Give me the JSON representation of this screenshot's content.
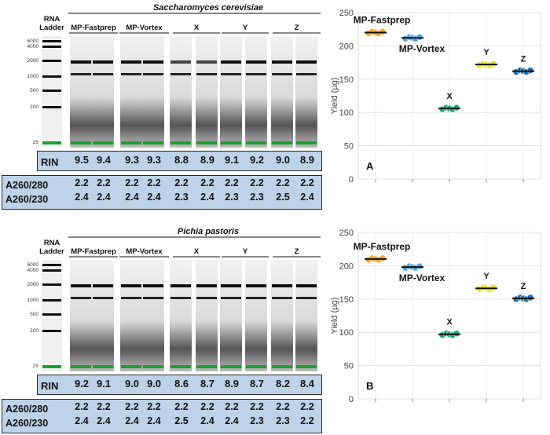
{
  "lane_labels": {
    "ladder_line1": "RNA",
    "ladder_line2": "Ladder",
    "groups": [
      "MP-Fastprep",
      "MP-Vortex",
      "X",
      "Y",
      "Z"
    ],
    "ladder_sizes": [
      "6000",
      "4000",
      "2000",
      "1000",
      "500",
      "200",
      "25"
    ]
  },
  "panels": [
    {
      "species": "Saccharomyces cerevisiae",
      "rin_label": "RIN",
      "rin": [
        "9.5",
        "9.4",
        "9.3",
        "9.3",
        "8.8",
        "8.9",
        "9.1",
        "9.2",
        "9.0",
        "8.9"
      ],
      "a280_label": "A260/280",
      "a280": [
        "2.2",
        "2.2",
        "2.2",
        "2.2",
        "2.2",
        "2.2",
        "2.2",
        "2.2",
        "2.2",
        "2.2"
      ],
      "a230_label": "A260/230",
      "a230": [
        "2.4",
        "2.4",
        "2.4",
        "2.4",
        "2.3",
        "2.4",
        "2.3",
        "2.3",
        "2.5",
        "2.4"
      ],
      "chart_letter": "A"
    },
    {
      "species": "Pichia pastoris",
      "rin_label": "RIN",
      "rin": [
        "9.2",
        "9.1",
        "9.0",
        "9.0",
        "8.6",
        "8.7",
        "8.9",
        "8.7",
        "8.2",
        "8.4"
      ],
      "a280_label": "A260/280",
      "a280": [
        "2.2",
        "2.2",
        "2.2",
        "2.2",
        "2.2",
        "2.2",
        "2.2",
        "2.2",
        "2.2",
        "2.2"
      ],
      "a230_label": "A260/230",
      "a230": [
        "2.4",
        "2.4",
        "2.4",
        "2.4",
        "2.5",
        "2.4",
        "2.4",
        "2.3",
        "2.3",
        "2.2"
      ],
      "chart_letter": "B"
    }
  ],
  "chart_data": [
    {
      "type": "scatter",
      "title": "",
      "xlabel": "",
      "ylabel": "Yield (µg)",
      "ylim": [
        0,
        250
      ],
      "yticks": [
        0,
        50,
        100,
        150,
        200,
        250
      ],
      "grid": true,
      "categories": [
        "MP-Fastprep",
        "MP-Vortex",
        "X",
        "Y",
        "Z"
      ],
      "values": [
        220,
        212,
        106,
        172,
        162
      ],
      "colors": [
        "#f2a526",
        "#4da3e0",
        "#1fa678",
        "#efe022",
        "#1b6fb0"
      ],
      "point_labels": [
        "MP-Fastprep",
        "MP-Vortex",
        "X",
        "Y",
        "Z"
      ]
    },
    {
      "type": "scatter",
      "title": "",
      "xlabel": "",
      "ylabel": "Yield (µg)",
      "ylim": [
        0,
        250
      ],
      "yticks": [
        0,
        50,
        100,
        150,
        200,
        250
      ],
      "grid": true,
      "categories": [
        "MP-Fastprep",
        "MP-Vortex",
        "X",
        "Y",
        "Z"
      ],
      "values": [
        210,
        198,
        97,
        166,
        151
      ],
      "colors": [
        "#f2a526",
        "#4da3e0",
        "#1fa678",
        "#efe022",
        "#1b6fb0"
      ],
      "point_labels": [
        "MP-Fastprep",
        "MP-Vortex",
        "X",
        "Y",
        "Z"
      ]
    }
  ]
}
